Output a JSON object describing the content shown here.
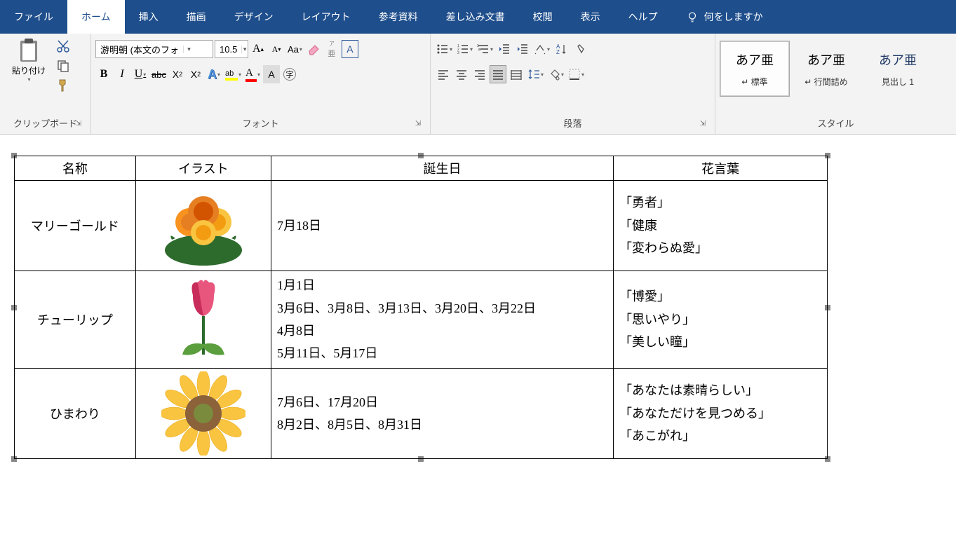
{
  "ribbon": {
    "tabs": {
      "file": "ファイル",
      "home": "ホーム",
      "insert": "挿入",
      "draw": "描画",
      "design": "デザイン",
      "layout": "レイアウト",
      "references": "参考資料",
      "mailings": "差し込み文書",
      "review": "校閲",
      "view": "表示",
      "help": "ヘルプ"
    },
    "tell_me": "何をしますか",
    "groups": {
      "clipboard": {
        "label": "クリップボード",
        "paste": "貼り付け"
      },
      "font": {
        "label": "フォント",
        "name": "游明朝 (本文のフォ",
        "size": "10.5"
      },
      "paragraph": {
        "label": "段落"
      },
      "styles": {
        "label": "スタイル",
        "items": [
          {
            "preview": "あア亜",
            "name": "↵ 標準",
            "selected": true
          },
          {
            "preview": "あア亜",
            "name": "↵ 行間詰め",
            "selected": false
          },
          {
            "preview": "あア亜",
            "name": "見出し 1",
            "selected": false
          }
        ]
      }
    }
  },
  "table": {
    "headers": {
      "name": "名称",
      "illust": "イラスト",
      "birth": "誕生日",
      "meaning": "花言葉"
    },
    "rows": [
      {
        "name": "マリーゴールド",
        "birth": "7月18日",
        "meaning": "「勇者」\n「健康\n「変わらぬ愛」"
      },
      {
        "name": "チューリップ",
        "birth": "1月1日\n3月6日、3月8日、3月13日、3月20日、3月22日\n4月8日\n5月11日、5月17日",
        "meaning": "「博愛」\n「思いやり」\n「美しい瞳」"
      },
      {
        "name": "ひまわり",
        "birth": "7月6日、17月20日\n8月2日、8月5日、8月31日",
        "meaning": "「あなたは素晴らしい」\n「あなただけを見つめる」\n「あこがれ」"
      }
    ]
  },
  "colors": {
    "ribbon_bg": "#1e4e8c",
    "accent_orange": "#f7931e",
    "accent_green": "#5a9e3d",
    "accent_red": "#d4145a",
    "accent_yellow": "#f9c440",
    "accent_brown": "#8b6239"
  }
}
